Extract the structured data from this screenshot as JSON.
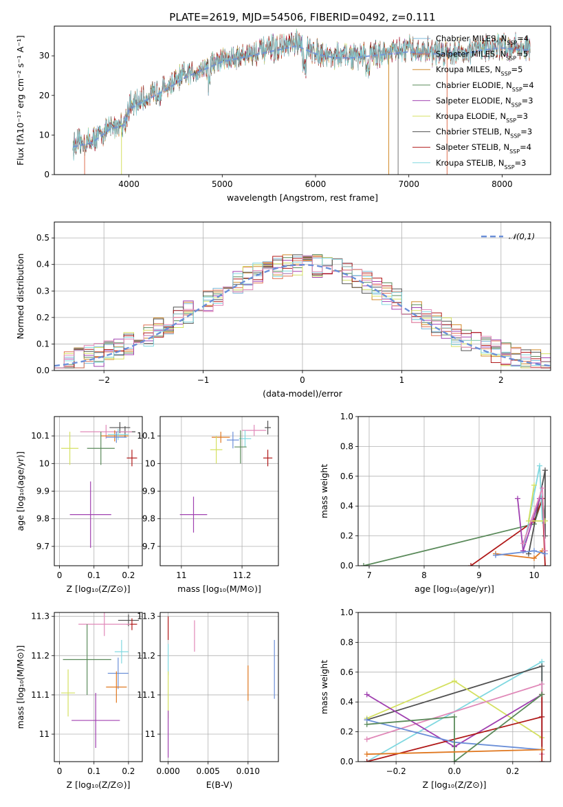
{
  "title": "PLATE=2619, MJD=54506, FIBERID=0492, z=0.111",
  "colors": {
    "chabrier_miles": "#7db8d8",
    "salpeter_miles": "#e07050",
    "kroupa_miles": "#d08a28",
    "chabrier_elodie": "#5a8a5a",
    "salpeter_elodie": "#a040b0",
    "kroupa_elodie": "#d4e060",
    "chabrier_stelib": "#505050",
    "salpeter_stelib": "#b01818",
    "kroupa_stelib": "#80d8e0",
    "blue": "#6b8fd8",
    "orange": "#e07820",
    "pink": "#e088b8",
    "normal": "#6b8fd8"
  },
  "chart_data": [
    {
      "id": "spectrum",
      "type": "line",
      "title": "PLATE=2619, MJD=54506, FIBERID=0492, z=0.111",
      "xlabel": "wavelength [Angstrom, rest frame]",
      "ylabel": "Flux [fλ10⁻¹⁷ erg cm⁻² s⁻¹ A⁻¹]",
      "xlim": [
        3200,
        8520
      ],
      "ylim": [
        0,
        37.5
      ],
      "xticks": [
        4000,
        5000,
        6000,
        7000,
        8000
      ],
      "yticks": [
        0,
        10,
        20,
        30
      ],
      "legend_placement": "top-right",
      "series": [
        {
          "name": "Chabrier MILES, N_SSP=4",
          "color_key": "chabrier_miles"
        },
        {
          "name": "Salpeter MILES, N_SSP=5",
          "color_key": "salpeter_miles"
        },
        {
          "name": "Kroupa MILES, N_SSP=5",
          "color_key": "kroupa_miles"
        },
        {
          "name": "Chabrier ELODIE, N_SSP=4",
          "color_key": "chabrier_elodie"
        },
        {
          "name": "Salpeter ELODIE, N_SSP=3",
          "color_key": "salpeter_elodie"
        },
        {
          "name": "Kroupa ELODIE, N_SSP=3",
          "color_key": "kroupa_elodie"
        },
        {
          "name": "Chabrier STELIB, N_SSP=3",
          "color_key": "chabrier_stelib"
        },
        {
          "name": "Salpeter STELIB, N_SSP=4",
          "color_key": "salpeter_stelib"
        },
        {
          "name": "Kroupa STELIB, N_SSP=3",
          "color_key": "kroupa_stelib"
        }
      ],
      "continuum": [
        [
          3400,
          7.5
        ],
        [
          3600,
          8.5
        ],
        [
          3800,
          12
        ],
        [
          3950,
          13
        ],
        [
          4000,
          17
        ],
        [
          4200,
          19.5
        ],
        [
          4400,
          22
        ],
        [
          4600,
          25
        ],
        [
          4800,
          27
        ],
        [
          5000,
          29
        ],
        [
          5200,
          30
        ],
        [
          5400,
          31
        ],
        [
          5600,
          32
        ],
        [
          5800,
          33
        ],
        [
          6000,
          31
        ],
        [
          6200,
          30
        ],
        [
          6400,
          30
        ],
        [
          6600,
          30.5
        ],
        [
          6800,
          31
        ],
        [
          7000,
          31.5
        ],
        [
          7200,
          31
        ],
        [
          7400,
          31
        ],
        [
          7600,
          31
        ],
        [
          7800,
          32
        ],
        [
          8000,
          32.5
        ],
        [
          8200,
          32
        ],
        [
          8300,
          32
        ]
      ]
    },
    {
      "id": "residuals",
      "type": "bar",
      "xlabel": "(data-model)/error",
      "ylabel": "Normed distribution",
      "xlim": [
        -2.5,
        2.5
      ],
      "ylim": [
        0,
        0.56
      ],
      "xticks": [
        -2,
        -1,
        0,
        1,
        2
      ],
      "xtick_labels": [
        "−2",
        "−1",
        "0",
        "1",
        "2"
      ],
      "yticks": [
        0.0,
        0.1,
        0.2,
        0.3,
        0.4,
        0.5
      ],
      "bin_width": 0.1,
      "legend": "𝒩(0,1)",
      "legend_placement": "top-right"
    },
    {
      "id": "age_vs_Z",
      "type": "scatter",
      "xlabel": "Z [log₁₀(Z/Z⊙)]",
      "ylabel": "age  [log₁₀(age/yr)]",
      "xlim": [
        -0.015,
        0.24
      ],
      "ylim": [
        9.63,
        10.17
      ],
      "xticks": [
        0.0,
        0.1,
        0.2
      ],
      "yticks": [
        9.7,
        9.8,
        9.9,
        10.0,
        10.1
      ],
      "points": [
        {
          "color_key": "chabrier_stelib",
          "x": 0.175,
          "xerr": 0.03,
          "y": 10.13,
          "yerr": 0.02
        },
        {
          "color_key": "chabrier_stelib",
          "x": 0.19,
          "xerr": 0.03,
          "y": 10.115,
          "yerr": 0.02
        },
        {
          "color_key": "pink",
          "x": 0.135,
          "xerr": 0.075,
          "y": 10.115,
          "yerr": 0.025
        },
        {
          "color_key": "orange",
          "x": 0.16,
          "xerr": 0.04,
          "y": 10.1,
          "yerr": 0.02
        },
        {
          "color_key": "kroupa_stelib",
          "x": 0.17,
          "xerr": 0.03,
          "y": 10.105,
          "yerr": 0.02
        },
        {
          "color_key": "blue",
          "x": 0.165,
          "xerr": 0.03,
          "y": 10.095,
          "yerr": 0.02
        },
        {
          "color_key": "chabrier_elodie",
          "x": 0.12,
          "xerr": 0.04,
          "y": 10.055,
          "yerr": 0.06
        },
        {
          "color_key": "kroupa_elodie",
          "x": 0.03,
          "xerr": 0.025,
          "y": 10.055,
          "yerr": 0.06
        },
        {
          "color_key": "salpeter_stelib",
          "x": 0.21,
          "xerr": 0.015,
          "y": 10.02,
          "yerr": 0.03
        },
        {
          "color_key": "salpeter_elodie",
          "x": 0.09,
          "xerr": 0.06,
          "y": 9.815,
          "yerr": 0.12
        }
      ]
    },
    {
      "id": "age_vs_mass",
      "type": "scatter",
      "xlabel": "mass [log₁₀(M/M⊙)]",
      "ylabel": "",
      "xlim": [
        10.93,
        11.32
      ],
      "ylim": [
        9.63,
        10.17
      ],
      "xticks": [
        11.0,
        11.2
      ],
      "yticks": [
        9.7,
        9.8,
        9.9,
        10.0,
        10.1
      ],
      "points": [
        {
          "color_key": "chabrier_stelib",
          "x": 11.285,
          "xerr": 0.01,
          "y": 10.13,
          "yerr": 0.025
        },
        {
          "color_key": "pink",
          "x": 11.24,
          "xerr": 0.04,
          "y": 10.12,
          "yerr": 0.02
        },
        {
          "color_key": "orange",
          "x": 11.13,
          "xerr": 0.03,
          "y": 10.095,
          "yerr": 0.02
        },
        {
          "color_key": "kroupa_stelib",
          "x": 11.21,
          "xerr": 0.02,
          "y": 10.09,
          "yerr": 0.03
        },
        {
          "color_key": "blue",
          "x": 11.17,
          "xerr": 0.02,
          "y": 10.085,
          "yerr": 0.03
        },
        {
          "color_key": "chabrier_elodie",
          "x": 11.195,
          "xerr": 0.02,
          "y": 10.06,
          "yerr": 0.06
        },
        {
          "color_key": "kroupa_elodie",
          "x": 11.115,
          "xerr": 0.02,
          "y": 10.05,
          "yerr": 0.05
        },
        {
          "color_key": "salpeter_stelib",
          "x": 11.285,
          "xerr": 0.015,
          "y": 10.02,
          "yerr": 0.03
        },
        {
          "color_key": "salpeter_elodie",
          "x": 11.04,
          "xerr": 0.045,
          "y": 9.815,
          "yerr": 0.065
        }
      ]
    },
    {
      "id": "weight_vs_age",
      "type": "line",
      "xlabel": "age  [log₁₀(age/yr)]",
      "ylabel": "mass weight",
      "xlim": [
        6.8,
        10.3
      ],
      "ylim": [
        0,
        1.0
      ],
      "xticks": [
        7,
        8,
        9,
        10
      ],
      "yticks": [
        0.0,
        0.2,
        0.4,
        0.6,
        0.8,
        1.0
      ],
      "series": [
        {
          "color_key": "chabrier_elodie",
          "points": [
            [
              6.9,
              0
            ],
            [
              10.0,
              0.28
            ],
            [
              10.15,
              0.45
            ],
            [
              10.2,
              0.3
            ]
          ]
        },
        {
          "color_key": "salpeter_stelib",
          "points": [
            [
              8.85,
              0
            ],
            [
              10.0,
              0.3
            ],
            [
              10.15,
              0.45
            ],
            [
              10.2,
              0.0
            ]
          ]
        },
        {
          "color_key": "orange",
          "points": [
            [
              9.3,
              0.08
            ],
            [
              10.0,
              0.05
            ],
            [
              10.15,
              0.1
            ]
          ]
        },
        {
          "color_key": "chabrier_stelib",
          "points": [
            [
              9.9,
              0.08
            ],
            [
              10.2,
              0.64
            ],
            [
              10.2,
              0.2
            ]
          ]
        },
        {
          "color_key": "kroupa_stelib",
          "points": [
            [
              9.8,
              0.1
            ],
            [
              10.1,
              0.67
            ],
            [
              10.15,
              0.3
            ]
          ]
        },
        {
          "color_key": "salpeter_elodie",
          "points": [
            [
              9.7,
              0.45
            ],
            [
              9.8,
              0.1
            ],
            [
              10.1,
              0.45
            ]
          ]
        },
        {
          "color_key": "kroupa_elodie",
          "points": [
            [
              10.0,
              0.54
            ],
            [
              9.9,
              0.3
            ],
            [
              10.2,
              0.3
            ]
          ]
        },
        {
          "color_key": "pink",
          "points": [
            [
              9.8,
              0.15
            ],
            [
              10.15,
              0.52
            ],
            [
              10.2,
              0.1
            ]
          ]
        },
        {
          "color_key": "blue",
          "points": [
            [
              9.3,
              0.07
            ],
            [
              10.0,
              0.1
            ],
            [
              10.2,
              0.08
            ]
          ]
        }
      ]
    },
    {
      "id": "mass_vs_Z",
      "type": "scatter",
      "xlabel": "Z [log₁₀(Z/Z⊙)]",
      "ylabel": "mass [log₁₀(M/M⊙)]",
      "xlim": [
        -0.015,
        0.24
      ],
      "ylim": [
        10.93,
        11.31
      ],
      "xticks": [
        0.0,
        0.1,
        0.2
      ],
      "yticks": [
        11.0,
        11.1,
        11.2,
        11.3
      ],
      "points": [
        {
          "color_key": "chabrier_stelib",
          "x": 0.2,
          "xerr": 0.03,
          "y": 11.29,
          "yerr": 0.015
        },
        {
          "color_key": "salpeter_stelib",
          "x": 0.21,
          "xerr": 0.015,
          "y": 11.28,
          "yerr": 0.015
        },
        {
          "color_key": "pink",
          "x": 0.13,
          "xerr": 0.075,
          "y": 11.28,
          "yerr": 0.03
        },
        {
          "color_key": "kroupa_stelib",
          "x": 0.18,
          "xerr": 0.02,
          "y": 11.21,
          "yerr": 0.03
        },
        {
          "color_key": "chabrier_elodie",
          "x": 0.08,
          "xerr": 0.07,
          "y": 11.19,
          "yerr": 0.09
        },
        {
          "color_key": "blue",
          "x": 0.17,
          "xerr": 0.03,
          "y": 11.155,
          "yerr": 0.04
        },
        {
          "color_key": "orange",
          "x": 0.165,
          "xerr": 0.03,
          "y": 11.12,
          "yerr": 0.04
        },
        {
          "color_key": "kroupa_elodie",
          "x": 0.025,
          "xerr": 0.02,
          "y": 11.105,
          "yerr": 0.06
        },
        {
          "color_key": "salpeter_elodie",
          "x": 0.105,
          "xerr": 0.07,
          "y": 11.035,
          "yerr": 0.07
        }
      ]
    },
    {
      "id": "mass_vs_ebv",
      "type": "scatter",
      "xlabel": "E(B-V)",
      "ylabel": "",
      "xlim": [
        -0.001,
        0.0138
      ],
      "ylim": [
        10.93,
        11.31
      ],
      "xticks": [
        0.0,
        0.005,
        0.01
      ],
      "xtick_labels": [
        "0.000",
        "0.005",
        "0.010"
      ],
      "yticks": [
        11.0,
        11.1,
        11.2,
        11.3
      ],
      "points": [
        {
          "color_key": "salpeter_stelib",
          "x": 0.0,
          "y": 11.27,
          "yerr": 0.03
        },
        {
          "color_key": "pink",
          "x": 0.0033,
          "y": 11.25,
          "yerr": 0.04
        },
        {
          "color_key": "kroupa_stelib",
          "x": 0.0,
          "y": 11.19,
          "yerr": 0.04
        },
        {
          "color_key": "kroupa_elodie",
          "x": 0.0,
          "y": 11.1,
          "yerr": 0.06
        },
        {
          "color_key": "salpeter_elodie",
          "x": 0.0,
          "y": 11.0,
          "yerr": 0.06
        },
        {
          "color_key": "orange",
          "x": 0.01,
          "y": 11.13,
          "yerr": 0.045
        },
        {
          "color_key": "blue",
          "x": 0.0133,
          "y": 11.165,
          "yerr": 0.075
        }
      ]
    },
    {
      "id": "weight_vs_Z",
      "type": "line",
      "xlabel": "Z [log₁₀(Z/Z⊙)]",
      "ylabel": "mass weight",
      "xlim": [
        -0.33,
        0.33
      ],
      "ylim": [
        0,
        1.0
      ],
      "xticks": [
        -0.2,
        0.0,
        0.2
      ],
      "xtick_labels": [
        "−0.2",
        "0.0",
        "0.2"
      ],
      "yticks": [
        0.0,
        0.2,
        0.4,
        0.6,
        0.8,
        1.0
      ],
      "series": [
        {
          "color_key": "kroupa_stelib",
          "points": [
            [
              -0.3,
              0
            ],
            [
              0.3,
              0.67
            ],
            [
              0.3,
              0.3
            ]
          ]
        },
        {
          "color_key": "chabrier_stelib",
          "points": [
            [
              -0.3,
              0.28
            ],
            [
              0.3,
              0.64
            ],
            [
              0.3,
              0.08
            ]
          ]
        },
        {
          "color_key": "kroupa_elodie",
          "points": [
            [
              -0.3,
              0.29
            ],
            [
              0.0,
              0.54
            ],
            [
              0.3,
              0.16
            ]
          ]
        },
        {
          "color_key": "pink",
          "points": [
            [
              -0.3,
              0.15
            ],
            [
              0.3,
              0.52
            ],
            [
              0.3,
              0.05
            ]
          ]
        },
        {
          "color_key": "salpeter_elodie",
          "points": [
            [
              -0.3,
              0.45
            ],
            [
              0.0,
              0.1
            ],
            [
              0.3,
              0.45
            ]
          ]
        },
        {
          "color_key": "salpeter_stelib",
          "points": [
            [
              -0.3,
              0.0
            ],
            [
              0.3,
              0.3
            ],
            [
              0.3,
              0.45
            ],
            [
              0.3,
              0.0
            ]
          ]
        },
        {
          "color_key": "blue",
          "points": [
            [
              -0.3,
              0.28
            ],
            [
              0.0,
              0.13
            ],
            [
              0.3,
              0.08
            ]
          ]
        },
        {
          "color_key": "chabrier_elodie",
          "points": [
            [
              -0.3,
              0.25
            ],
            [
              0.0,
              0.3
            ],
            [
              0.0,
              0.0
            ],
            [
              0.3,
              0.45
            ]
          ]
        },
        {
          "color_key": "orange",
          "points": [
            [
              -0.3,
              0.05
            ],
            [
              0.3,
              0.08
            ]
          ]
        }
      ]
    }
  ]
}
